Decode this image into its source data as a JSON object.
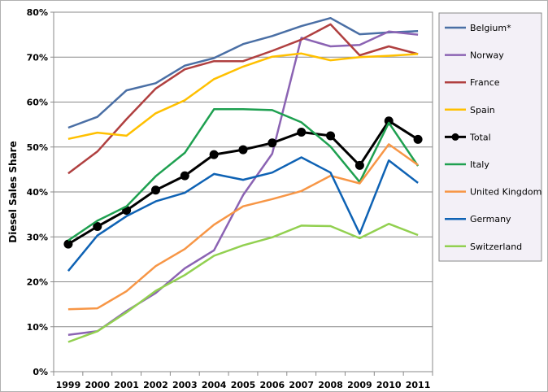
{
  "chart_data": {
    "type": "line",
    "title": "",
    "xlabel": "",
    "ylabel": "Diesel Sales Share",
    "x": [
      "1999",
      "2000",
      "2001",
      "2002",
      "2003",
      "2004",
      "2005",
      "2006",
      "2007",
      "2008",
      "2009",
      "2010",
      "2011"
    ],
    "yticks": [
      "0%",
      "10%",
      "20%",
      "30%",
      "40%",
      "50%",
      "60%",
      "70%",
      "80%"
    ],
    "ylim": [
      0,
      80
    ],
    "grid": "horizontal",
    "legend_position": "right",
    "series": [
      {
        "name": "Belgium*",
        "color": "#4a6fa5",
        "values": [
          54.3,
          56.7,
          62.6,
          64.2,
          68.1,
          69.8,
          72.9,
          74.7,
          76.9,
          78.7,
          75.1,
          75.5,
          75.8
        ]
      },
      {
        "name": "Norway",
        "color": "#8b63b3",
        "values": [
          8.2,
          9.0,
          13.5,
          17.5,
          23.0,
          27.0,
          39.3,
          48.5,
          74.3,
          72.4,
          72.7,
          75.7,
          75.0
        ]
      },
      {
        "name": "France",
        "color": "#b04040",
        "values": [
          44.1,
          49.0,
          56.2,
          63.0,
          67.3,
          69.1,
          69.1,
          71.4,
          73.9,
          77.3,
          70.4,
          72.4,
          70.7
        ]
      },
      {
        "name": "Spain",
        "color": "#ffc000",
        "values": [
          51.8,
          53.2,
          52.5,
          57.5,
          60.4,
          65.1,
          67.9,
          70.1,
          70.8,
          69.3,
          70.0,
          70.3,
          70.7
        ]
      },
      {
        "name": "Total",
        "color": "#000000",
        "marker": "circle",
        "values": [
          28.4,
          32.3,
          35.9,
          40.4,
          43.6,
          48.3,
          49.4,
          50.9,
          53.3,
          52.5,
          45.9,
          55.8,
          51.7
        ]
      },
      {
        "name": "Italy",
        "color": "#1ea050",
        "values": [
          29.2,
          33.6,
          36.8,
          43.5,
          48.7,
          58.4,
          58.4,
          58.2,
          55.5,
          50.1,
          42.2,
          55.4,
          45.8
        ]
      },
      {
        "name": "United Kingdom",
        "color": "#f79646",
        "values": [
          13.9,
          14.1,
          17.9,
          23.5,
          27.3,
          32.7,
          36.8,
          38.4,
          40.2,
          43.6,
          41.9,
          50.6,
          46.0
        ]
      },
      {
        "name": "Germany",
        "color": "#0e62b4",
        "values": [
          22.4,
          30.3,
          34.6,
          37.9,
          39.8,
          44.0,
          42.7,
          44.3,
          47.7,
          44.3,
          30.7,
          47.0,
          42.0
        ]
      },
      {
        "name": "Switzerland",
        "color": "#92d050",
        "values": [
          6.6,
          9.0,
          13.2,
          18.0,
          21.5,
          25.8,
          28.1,
          29.9,
          32.5,
          32.4,
          29.7,
          32.9,
          30.4
        ]
      }
    ]
  }
}
